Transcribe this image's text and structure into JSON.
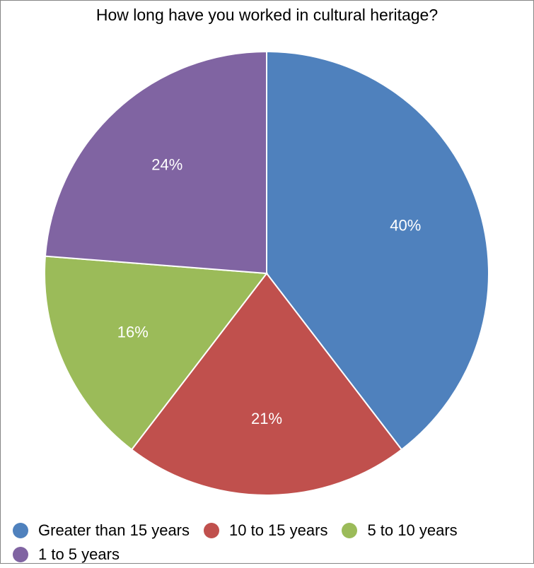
{
  "chart_data": {
    "type": "pie",
    "title": "How long have you worked in cultural heritage?",
    "categories": [
      "Greater than 15 years",
      "10 to 15 years",
      "5 to 10 years",
      "1 to 5 years"
    ],
    "values": [
      40,
      21,
      16,
      24
    ],
    "labels": [
      "40%",
      "21%",
      "16%",
      "24%"
    ],
    "colors": [
      "#4F81BD",
      "#C0504D",
      "#9BBB59",
      "#8064A2"
    ],
    "legend_position": "bottom"
  }
}
